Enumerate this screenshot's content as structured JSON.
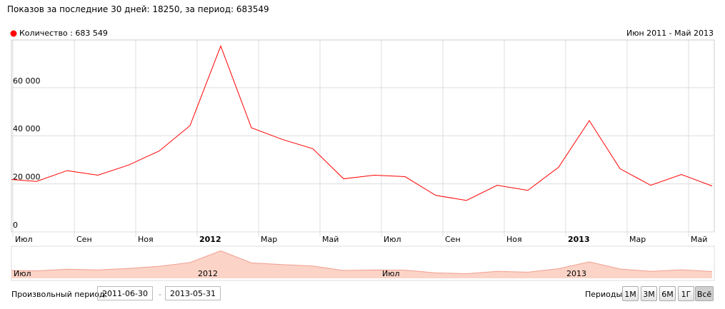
{
  "header": {
    "text": "Показов за последние 30 дней: 18250, за период: 683549"
  },
  "chart_data": {
    "type": "line",
    "range_label": "Июн 2011 - Май 2013",
    "categories": [
      null,
      "Июл",
      null,
      "Сен",
      null,
      "Ноя",
      null,
      "2012",
      null,
      "Мар",
      null,
      "Май",
      null,
      "Июл",
      null,
      "Сен",
      null,
      "Ноя",
      null,
      "2013",
      null,
      "Мар",
      null,
      "Май"
    ],
    "series": [
      {
        "name": "Количество : 683 549",
        "color": "#ff0000",
        "values": [
          22000,
          21000,
          25500,
          23600,
          27800,
          33700,
          44200,
          77300,
          43300,
          38500,
          34600,
          22100,
          23600,
          23000,
          15200,
          13100,
          19400,
          17300,
          26900,
          46300,
          26300,
          19400,
          23900,
          19100
        ]
      }
    ],
    "ylim": [
      0,
      84000
    ],
    "yticks": [
      0,
      {
        "value": 20000,
        "label": "20 000"
      },
      {
        "value": 40000,
        "label": "40 000"
      },
      {
        "value": 60000,
        "label": "60 000"
      }
    ],
    "grid": true,
    "navigator_labels": [
      "Июл",
      "2012",
      "Июл",
      "2013"
    ]
  },
  "controls": {
    "custom_period_label": "Произвольный период:",
    "from": "2011-06-30",
    "separator": "-",
    "to": "2013-05-31",
    "periods_label": "Периоды:",
    "periods": [
      "1М",
      "3М",
      "6М",
      "1Г",
      "Всё"
    ]
  }
}
